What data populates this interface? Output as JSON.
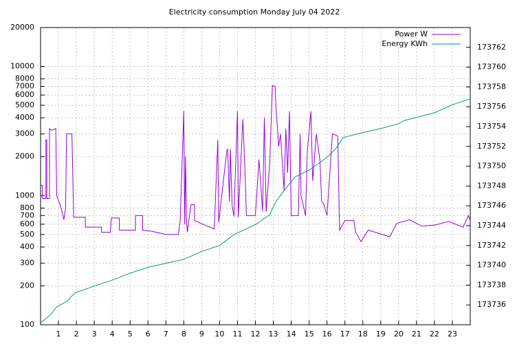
{
  "chart_data": {
    "type": "line",
    "title": "Electricity consumption Monday July 04 2022",
    "xlim": [
      0,
      24
    ],
    "xticks": [
      1,
      2,
      3,
      4,
      5,
      6,
      7,
      8,
      9,
      10,
      11,
      12,
      13,
      14,
      15,
      16,
      17,
      18,
      19,
      20,
      21,
      22,
      23
    ],
    "ylim": [
      100,
      20000
    ],
    "ylog": true,
    "yticks": [
      100,
      200,
      300,
      400,
      500,
      600,
      700,
      800,
      1000,
      2000,
      3000,
      4000,
      5000,
      6000,
      7000,
      8000,
      10000,
      20000
    ],
    "y2lim": [
      173734,
      173764
    ],
    "y2ticks": [
      173736,
      173738,
      173740,
      173742,
      173744,
      173746,
      173748,
      173750,
      173752,
      173754,
      173756,
      173758,
      173760,
      173762
    ],
    "grid": true,
    "legend": "top-right",
    "series": [
      {
        "name": "Power W",
        "color": "#9400d3",
        "x": [
          0,
          0.1,
          0.1,
          0.3,
          0.3,
          0.35,
          0.35,
          0.5,
          0.5,
          0.6,
          0.85,
          0.9,
          1.15,
          1.3,
          1.4,
          1.45,
          1.75,
          1.85,
          2.5,
          2.5,
          3.4,
          3.4,
          3.9,
          3.95,
          4.4,
          4.4,
          5.3,
          5.3,
          5.7,
          5.7,
          6.2,
          7,
          7.7,
          7.8,
          8.0,
          8.05,
          8.1,
          8.15,
          8.2,
          8.4,
          8.6,
          8.6,
          9.2,
          9.7,
          9.9,
          9.95,
          10.4,
          10.45,
          10.55,
          10.6,
          10.7,
          10.8,
          11.0,
          11.05,
          11.2,
          11.3,
          11.4,
          11.5,
          12.0,
          12.2,
          12.4,
          12.5,
          12.6,
          12.8,
          12.95,
          13.1,
          13.15,
          13.3,
          13.4,
          13.6,
          13.7,
          13.8,
          13.9,
          14.0,
          14.4,
          14.5,
          14.55,
          14.8,
          14.9,
          15.1,
          15.2,
          15.4,
          15.6,
          15.7,
          15.8,
          16.0,
          16.3,
          16.6,
          16.7,
          17.0,
          17.5,
          17.6,
          17.9,
          18.3,
          19.5,
          19.9,
          20.6,
          21.3,
          22.0,
          22.8,
          23.6,
          23.9,
          24
        ],
        "values": [
          1200,
          1200,
          950,
          950,
          2700,
          2700,
          950,
          950,
          3300,
          3200,
          3300,
          1000,
          800,
          650,
          800,
          3000,
          3000,
          680,
          680,
          570,
          570,
          520,
          520,
          670,
          670,
          540,
          540,
          700,
          700,
          540,
          530,
          500,
          500,
          640,
          4500,
          600,
          2000,
          640,
          520,
          850,
          850,
          640,
          590,
          550,
          2700,
          620,
          2200,
          2300,
          900,
          2300,
          830,
          690,
          4500,
          680,
          2000,
          3900,
          1800,
          700,
          700,
          1900,
          760,
          4000,
          750,
          1800,
          7100,
          7000,
          4800,
          2400,
          3000,
          1100,
          3300,
          1500,
          4500,
          700,
          700,
          3000,
          1000,
          700,
          2200,
          4500,
          1300,
          3000,
          1900,
          900,
          870,
          700,
          3000,
          2900,
          540,
          640,
          640,
          520,
          440,
          540,
          480,
          610,
          650,
          580,
          590,
          630,
          570,
          700,
          640
        ]
      },
      {
        "name": "Energy KWh",
        "color": "#009e73",
        "axis": "y2",
        "x": [
          0,
          0.5,
          0.9,
          1.5,
          1.9,
          3,
          4,
          5,
          6,
          7,
          8,
          9,
          10,
          10.8,
          12,
          12.8,
          13.1,
          13.5,
          14.2,
          15,
          16,
          16.5,
          16.9,
          18,
          19,
          20,
          20.3,
          22,
          23,
          24
        ],
        "values": [
          173734.2,
          173734.9,
          173735.8,
          173736.4,
          173737.2,
          173737.9,
          173738.5,
          173739.2,
          173739.8,
          173740.2,
          173740.6,
          173741.4,
          173742.0,
          173743.1,
          173744.1,
          173745.1,
          173746.3,
          173747.3,
          173748.9,
          173749.6,
          173750.9,
          173751.8,
          173752.9,
          173753.4,
          173753.8,
          173754.3,
          173754.6,
          173755.4,
          173756.2,
          173756.8
        ]
      }
    ]
  }
}
